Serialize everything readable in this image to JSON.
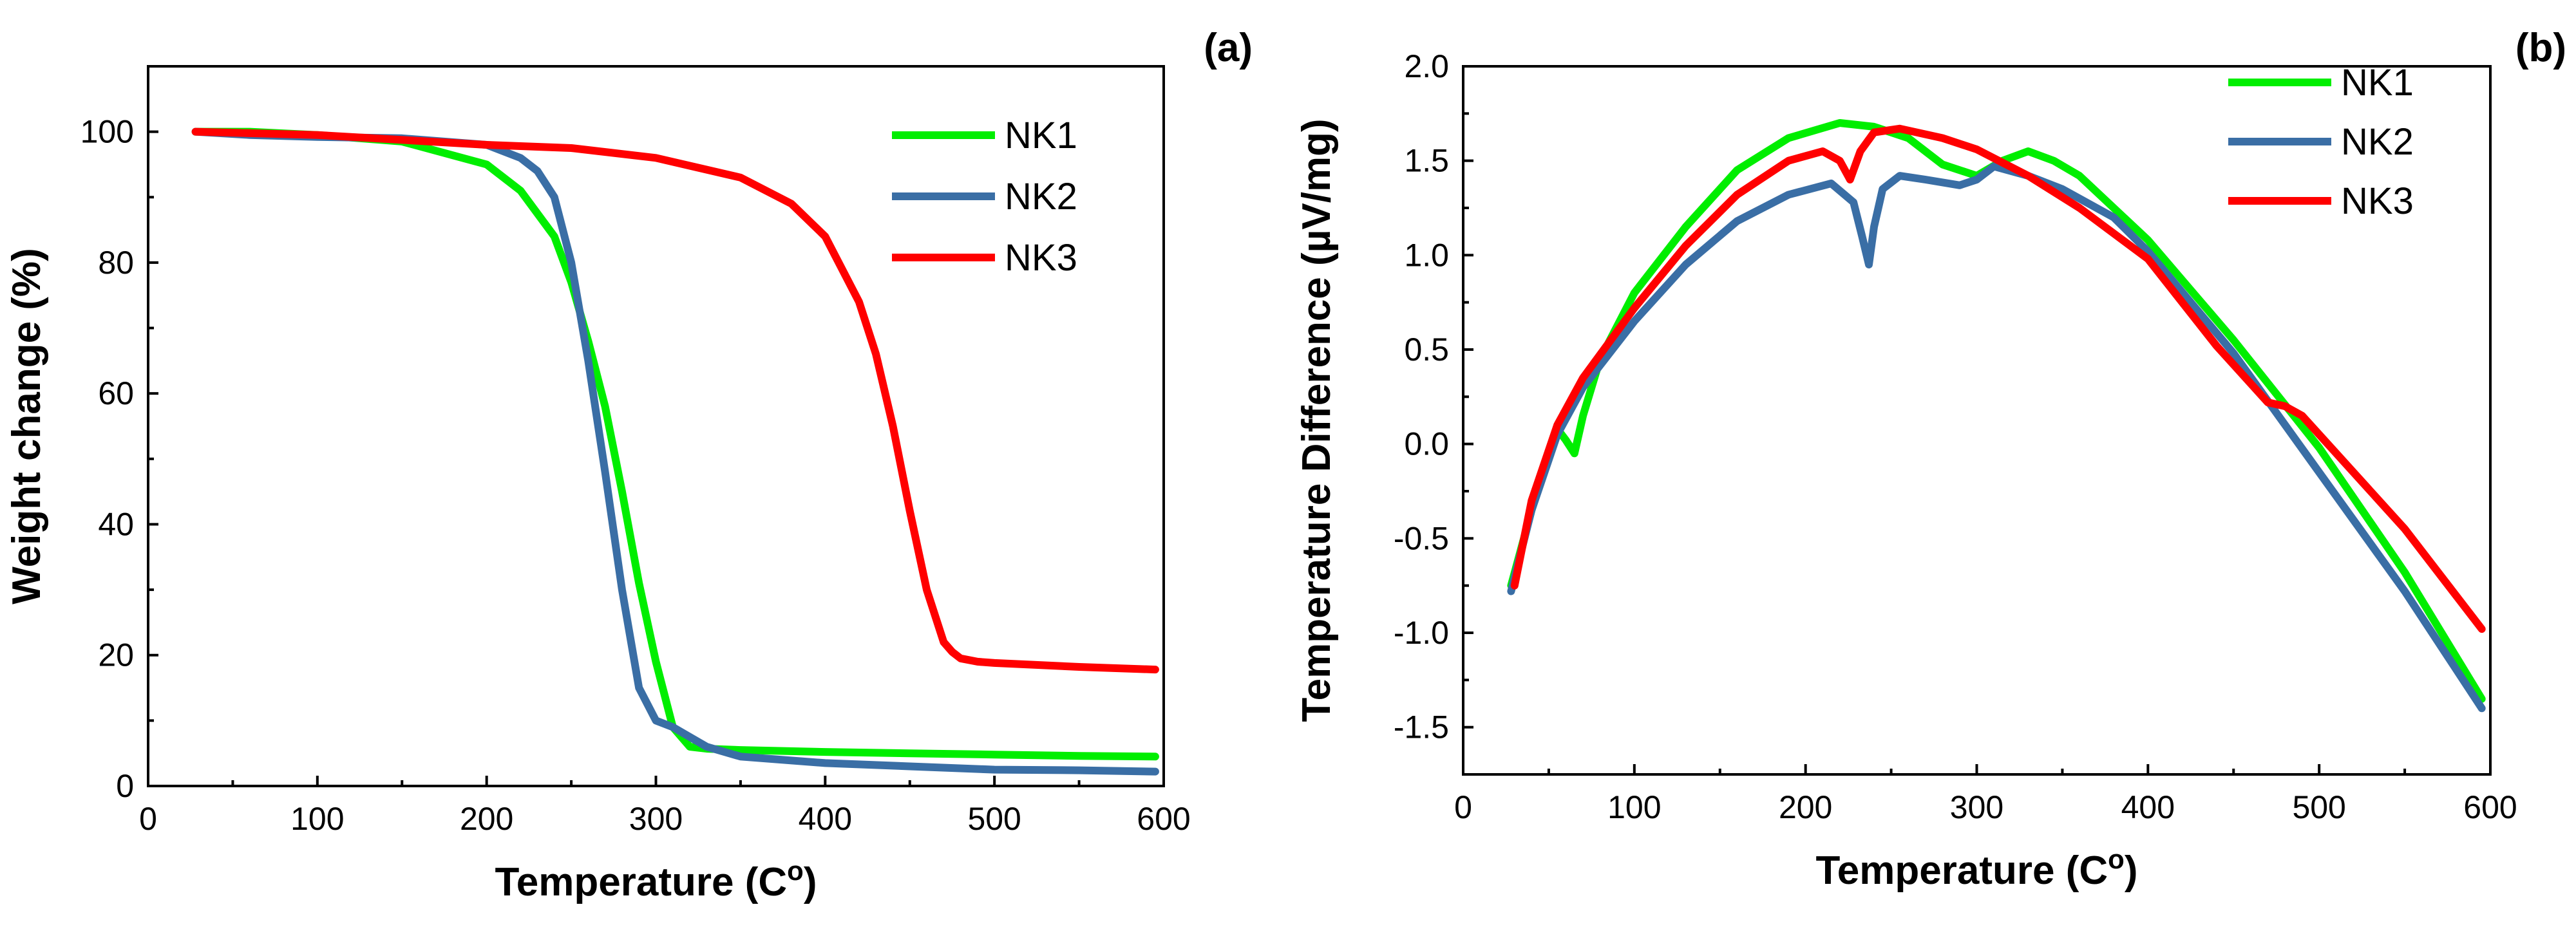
{
  "chart_data": [
    {
      "type": "line",
      "panel_label": "(a)",
      "xlabel": "Temperature (C",
      "xlabel_sup": "o",
      "xlabel_suffix": ")",
      "ylabel": "Weight change (%)",
      "xlim": [
        0,
        600
      ],
      "ylim": [
        0,
        110
      ],
      "xticks": [
        0,
        100,
        200,
        300,
        400,
        500,
        600
      ],
      "yticks": [
        0,
        20,
        40,
        60,
        80,
        100
      ],
      "legend_position": "top-right",
      "series": [
        {
          "name": "NK1",
          "color": "#00ee00",
          "x": [
            28,
            60,
            100,
            150,
            200,
            220,
            240,
            250,
            260,
            270,
            280,
            290,
            300,
            310,
            320,
            330,
            350,
            400,
            450,
            500,
            550,
            595
          ],
          "y": [
            100,
            100,
            99.5,
            98.5,
            95,
            91,
            84,
            77,
            68,
            58,
            45,
            31,
            19,
            9,
            6,
            5.7,
            5.5,
            5.2,
            5,
            4.8,
            4.6,
            4.5
          ]
        },
        {
          "name": "NK2",
          "color": "#3a6ea5",
          "x": [
            28,
            60,
            100,
            150,
            200,
            220,
            230,
            240,
            250,
            260,
            270,
            280,
            290,
            300,
            310,
            320,
            330,
            350,
            400,
            450,
            500,
            550,
            595
          ],
          "y": [
            100,
            99.5,
            99.2,
            99,
            98,
            96,
            94,
            90,
            80,
            65,
            48,
            30,
            15,
            10,
            9,
            7.5,
            6,
            4.5,
            3.5,
            3,
            2.5,
            2.4,
            2.2
          ]
        },
        {
          "name": "NK3",
          "color": "#ff0000",
          "x": [
            28,
            100,
            200,
            250,
            300,
            350,
            380,
            400,
            420,
            430,
            440,
            450,
            460,
            470,
            475,
            480,
            490,
            500,
            550,
            595
          ],
          "y": [
            100,
            99.5,
            98,
            97.5,
            96,
            93,
            89,
            84,
            74,
            66,
            55,
            42,
            30,
            22,
            20.5,
            19.5,
            19,
            18.8,
            18.2,
            17.8
          ]
        }
      ]
    },
    {
      "type": "line",
      "panel_label": "(b)",
      "xlabel": "Temperature (C",
      "xlabel_sup": "o",
      "xlabel_suffix": ")",
      "ylabel": "Temperature Difference (µV/mg)",
      "xlim": [
        0,
        600
      ],
      "ylim": [
        -1.75,
        2.0
      ],
      "xticks": [
        0,
        100,
        200,
        300,
        400,
        500,
        600
      ],
      "yticks": [
        -1.5,
        -1.0,
        -0.5,
        0.0,
        0.5,
        1.0,
        1.5,
        2.0
      ],
      "ytick_labels": [
        "-1.5",
        "-1.0",
        "-0.5",
        "0.0",
        "0.5",
        "1.0",
        "1.5",
        "2.0"
      ],
      "legend_position": "top-right",
      "series": [
        {
          "name": "NK1",
          "color": "#00ee00",
          "x": [
            28,
            40,
            55,
            60,
            65,
            70,
            80,
            100,
            130,
            160,
            190,
            220,
            240,
            260,
            280,
            300,
            315,
            330,
            345,
            360,
            400,
            450,
            500,
            550,
            595
          ],
          "y": [
            -0.75,
            -0.35,
            0.08,
            0.02,
            -0.05,
            0.15,
            0.45,
            0.8,
            1.15,
            1.45,
            1.62,
            1.7,
            1.68,
            1.62,
            1.48,
            1.42,
            1.5,
            1.55,
            1.5,
            1.42,
            1.08,
            0.55,
            -0.02,
            -0.68,
            -1.35
          ]
        },
        {
          "name": "NK2",
          "color": "#3a6ea5",
          "x": [
            28,
            40,
            55,
            70,
            100,
            130,
            160,
            190,
            215,
            228,
            233,
            237,
            240,
            245,
            255,
            270,
            290,
            300,
            310,
            330,
            350,
            380,
            400,
            450,
            500,
            550,
            595
          ],
          "y": [
            -0.78,
            -0.35,
            0.05,
            0.3,
            0.65,
            0.95,
            1.18,
            1.32,
            1.38,
            1.28,
            1.1,
            0.95,
            1.15,
            1.35,
            1.42,
            1.4,
            1.37,
            1.4,
            1.47,
            1.42,
            1.35,
            1.2,
            1.02,
            0.48,
            -0.15,
            -0.78,
            -1.4
          ]
        },
        {
          "name": "NK3",
          "color": "#ff0000",
          "x": [
            30,
            40,
            55,
            70,
            100,
            130,
            160,
            190,
            210,
            220,
            226,
            232,
            240,
            255,
            280,
            300,
            330,
            360,
            400,
            440,
            470,
            480,
            490,
            510,
            550,
            595
          ],
          "y": [
            -0.75,
            -0.3,
            0.1,
            0.35,
            0.72,
            1.05,
            1.32,
            1.5,
            1.55,
            1.5,
            1.4,
            1.55,
            1.65,
            1.67,
            1.62,
            1.56,
            1.42,
            1.25,
            0.98,
            0.52,
            0.22,
            0.2,
            0.15,
            -0.05,
            -0.45,
            -0.98
          ]
        }
      ]
    }
  ]
}
